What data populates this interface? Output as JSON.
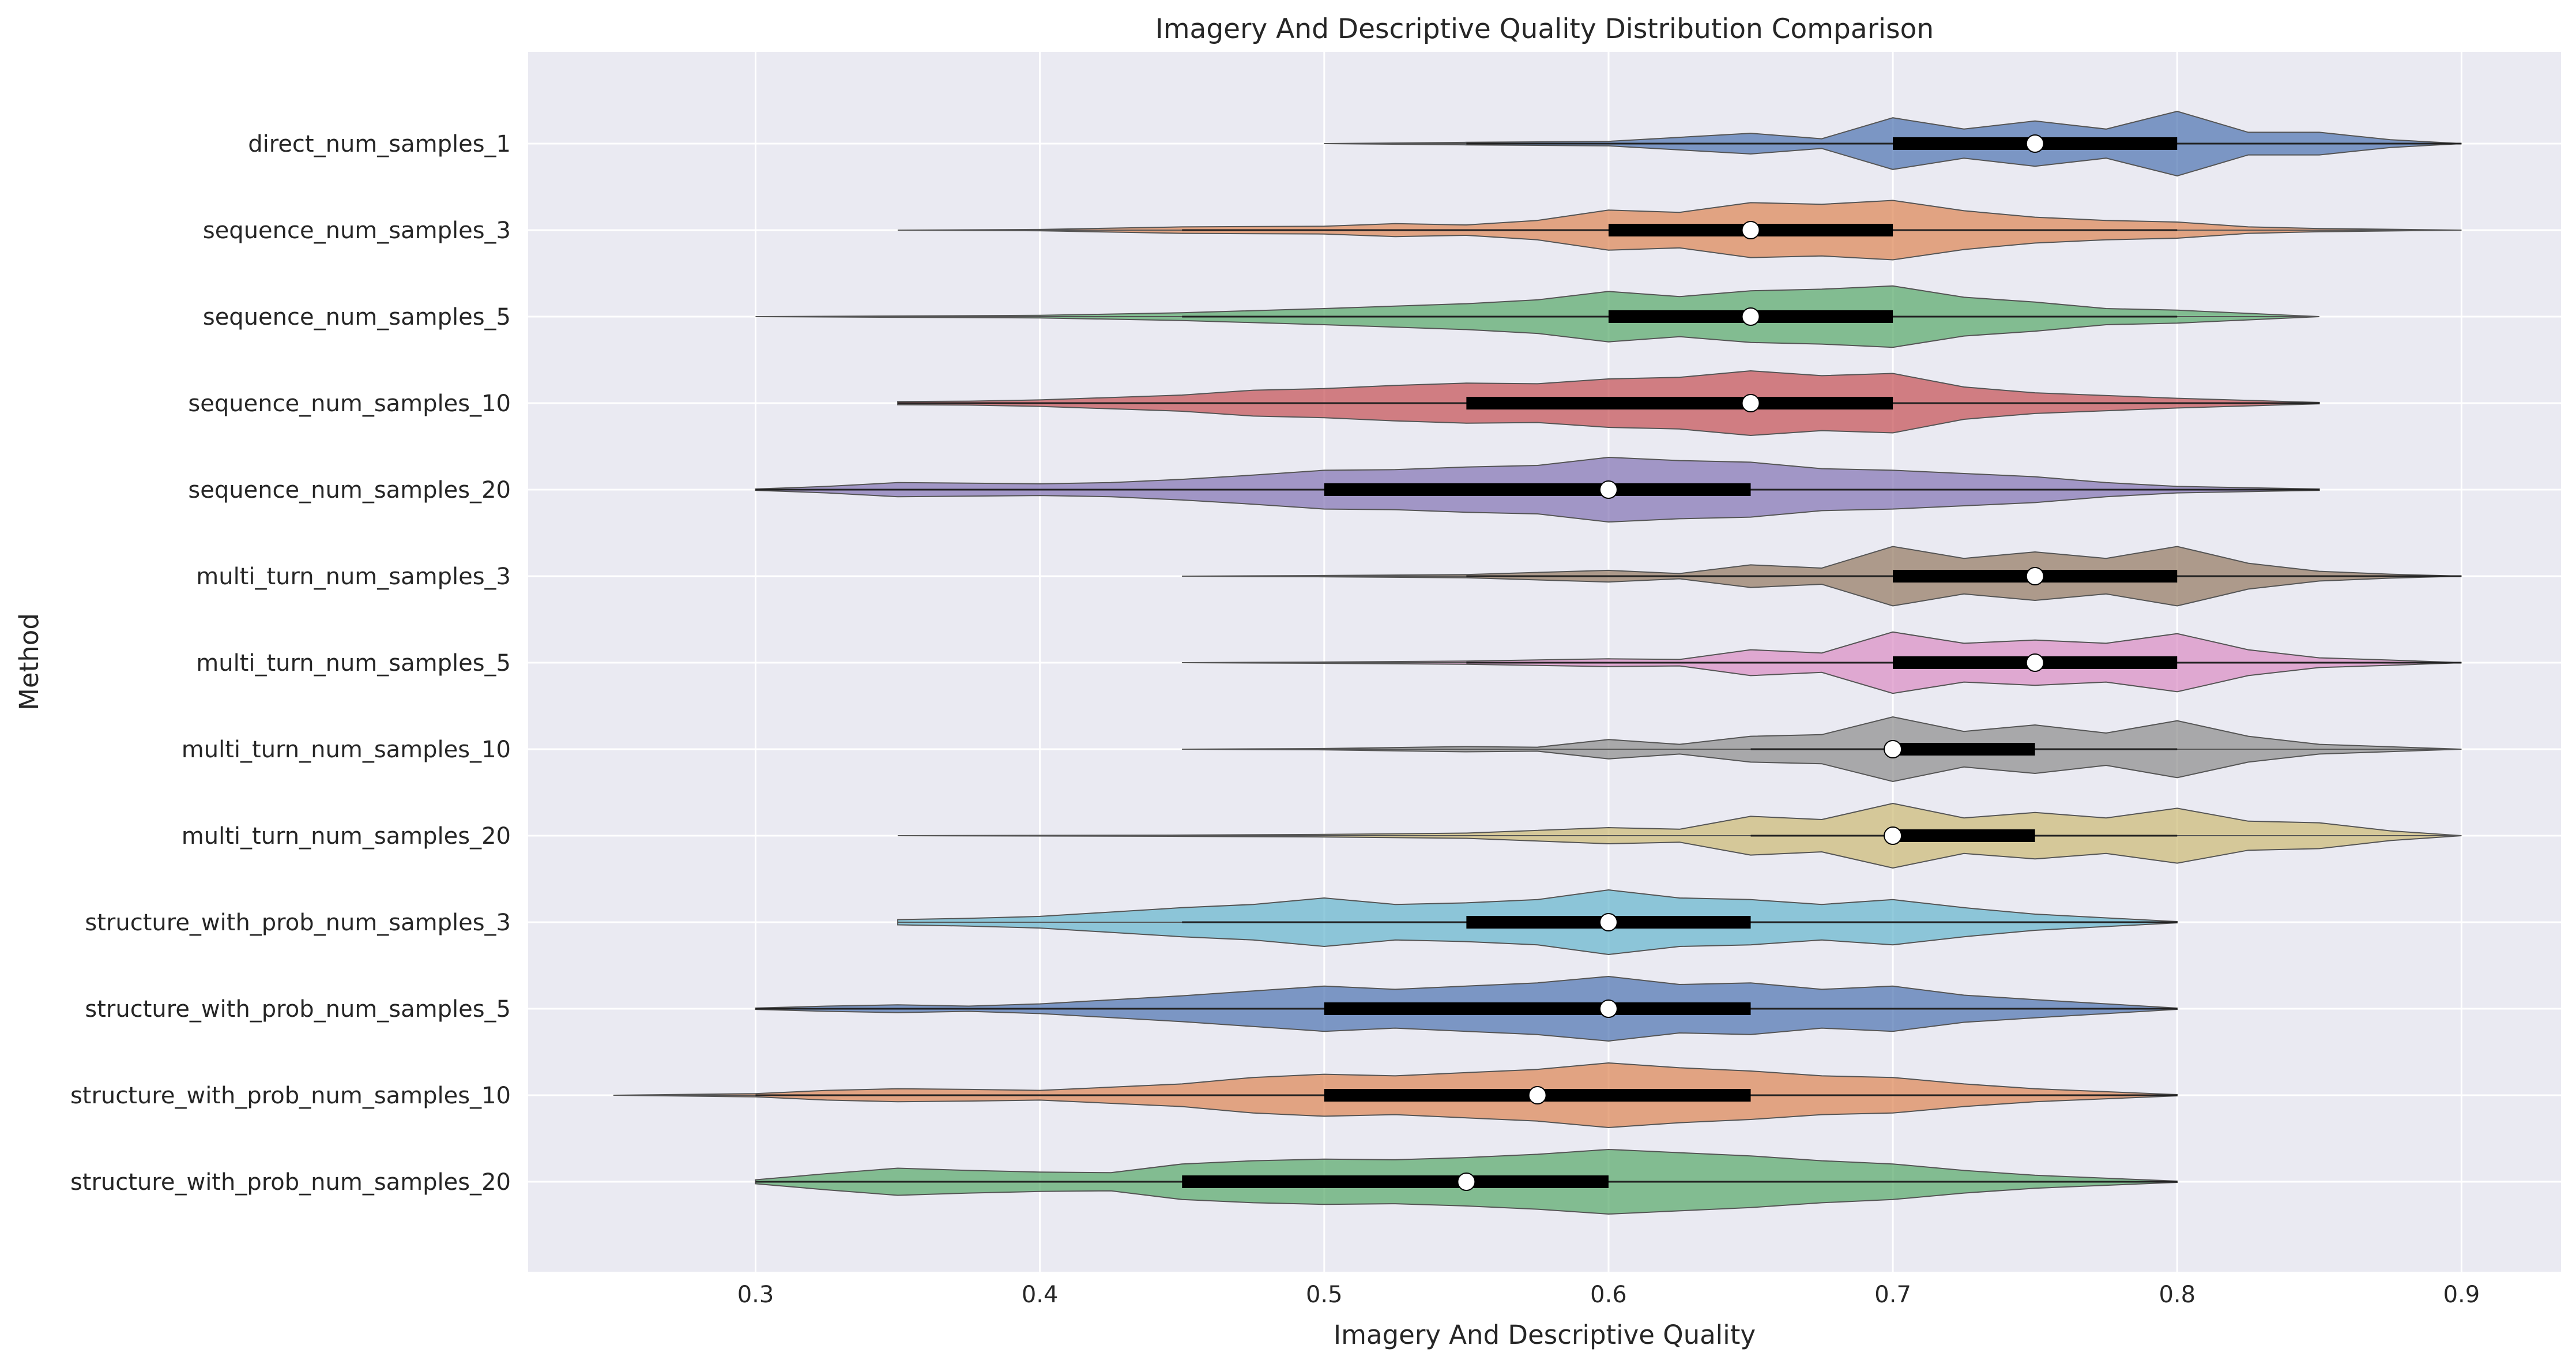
{
  "chart_data": {
    "type": "violin",
    "orientation": "horizontal",
    "title": "Imagery And Descriptive Quality Distribution Comparison",
    "xlabel": "Imagery And Descriptive Quality",
    "ylabel": "Method",
    "xlim": [
      0.22,
      0.935
    ],
    "xticks": [
      "0.3",
      "0.4",
      "0.5",
      "0.6",
      "0.7",
      "0.8",
      "0.9"
    ],
    "grid": true,
    "background": "#eaeaf2",
    "series": [
      {
        "name": "direct_num_samples_1",
        "color": "#4c72b0",
        "q1": 0.7,
        "median": 0.75,
        "q3": 0.8,
        "whisker_low": 0.55,
        "whisker_high": 0.9,
        "min": 0.5,
        "max": 0.9,
        "density": [
          [
            0.5,
            0.0
          ],
          [
            0.55,
            0.04
          ],
          [
            0.6,
            0.07
          ],
          [
            0.65,
            0.32
          ],
          [
            0.675,
            0.15
          ],
          [
            0.7,
            0.8
          ],
          [
            0.725,
            0.45
          ],
          [
            0.75,
            0.7
          ],
          [
            0.775,
            0.45
          ],
          [
            0.8,
            1.0
          ],
          [
            0.825,
            0.35
          ],
          [
            0.85,
            0.35
          ],
          [
            0.875,
            0.12
          ],
          [
            0.9,
            0.0
          ]
        ]
      },
      {
        "name": "sequence_num_samples_3",
        "color": "#dd8452",
        "q1": 0.6,
        "median": 0.65,
        "q3": 0.7,
        "whisker_low": 0.45,
        "whisker_high": 0.8,
        "min": 0.35,
        "max": 0.9,
        "density": [
          [
            0.35,
            0.0
          ],
          [
            0.4,
            0.02
          ],
          [
            0.45,
            0.1
          ],
          [
            0.5,
            0.12
          ],
          [
            0.525,
            0.2
          ],
          [
            0.55,
            0.16
          ],
          [
            0.575,
            0.3
          ],
          [
            0.6,
            0.62
          ],
          [
            0.625,
            0.55
          ],
          [
            0.65,
            0.85
          ],
          [
            0.675,
            0.8
          ],
          [
            0.7,
            0.92
          ],
          [
            0.725,
            0.6
          ],
          [
            0.75,
            0.4
          ],
          [
            0.775,
            0.3
          ],
          [
            0.8,
            0.25
          ],
          [
            0.825,
            0.1
          ],
          [
            0.85,
            0.05
          ],
          [
            0.9,
            0.0
          ]
        ]
      },
      {
        "name": "sequence_num_samples_5",
        "color": "#55a868",
        "q1": 0.6,
        "median": 0.65,
        "q3": 0.7,
        "whisker_low": 0.45,
        "whisker_high": 0.8,
        "min": 0.3,
        "max": 0.85,
        "density": [
          [
            0.3,
            0.0
          ],
          [
            0.35,
            0.02
          ],
          [
            0.4,
            0.04
          ],
          [
            0.45,
            0.12
          ],
          [
            0.5,
            0.25
          ],
          [
            0.55,
            0.4
          ],
          [
            0.575,
            0.52
          ],
          [
            0.6,
            0.78
          ],
          [
            0.625,
            0.62
          ],
          [
            0.65,
            0.8
          ],
          [
            0.675,
            0.85
          ],
          [
            0.7,
            0.95
          ],
          [
            0.725,
            0.6
          ],
          [
            0.75,
            0.45
          ],
          [
            0.775,
            0.25
          ],
          [
            0.8,
            0.2
          ],
          [
            0.825,
            0.1
          ],
          [
            0.85,
            0.0
          ]
        ]
      },
      {
        "name": "sequence_num_samples_10",
        "color": "#c44e52",
        "q1": 0.55,
        "median": 0.65,
        "q3": 0.7,
        "whisker_low": 0.35,
        "whisker_high": 0.85,
        "min": 0.35,
        "max": 0.85,
        "density": [
          [
            0.35,
            0.05
          ],
          [
            0.375,
            0.06
          ],
          [
            0.4,
            0.1
          ],
          [
            0.45,
            0.25
          ],
          [
            0.475,
            0.4
          ],
          [
            0.5,
            0.45
          ],
          [
            0.525,
            0.55
          ],
          [
            0.55,
            0.62
          ],
          [
            0.575,
            0.6
          ],
          [
            0.6,
            0.75
          ],
          [
            0.625,
            0.8
          ],
          [
            0.65,
            1.0
          ],
          [
            0.675,
            0.85
          ],
          [
            0.7,
            0.92
          ],
          [
            0.725,
            0.5
          ],
          [
            0.75,
            0.32
          ],
          [
            0.8,
            0.15
          ],
          [
            0.85,
            0.02
          ]
        ]
      },
      {
        "name": "sequence_num_samples_20",
        "color": "#8172b3",
        "q1": 0.5,
        "median": 0.6,
        "q3": 0.65,
        "whisker_low": 0.3,
        "whisker_high": 0.85,
        "min": 0.3,
        "max": 0.85,
        "density": [
          [
            0.3,
            0.02
          ],
          [
            0.325,
            0.1
          ],
          [
            0.35,
            0.22
          ],
          [
            0.375,
            0.2
          ],
          [
            0.4,
            0.18
          ],
          [
            0.425,
            0.22
          ],
          [
            0.45,
            0.32
          ],
          [
            0.475,
            0.45
          ],
          [
            0.5,
            0.6
          ],
          [
            0.525,
            0.62
          ],
          [
            0.55,
            0.7
          ],
          [
            0.575,
            0.75
          ],
          [
            0.6,
            1.0
          ],
          [
            0.625,
            0.9
          ],
          [
            0.65,
            0.85
          ],
          [
            0.675,
            0.65
          ],
          [
            0.7,
            0.6
          ],
          [
            0.725,
            0.5
          ],
          [
            0.75,
            0.4
          ],
          [
            0.775,
            0.22
          ],
          [
            0.8,
            0.1
          ],
          [
            0.85,
            0.02
          ]
        ]
      },
      {
        "name": "multi_turn_num_samples_3",
        "color": "#937860",
        "q1": 0.7,
        "median": 0.75,
        "q3": 0.8,
        "whisker_low": 0.55,
        "whisker_high": 0.9,
        "min": 0.45,
        "max": 0.9,
        "density": [
          [
            0.45,
            0.0
          ],
          [
            0.5,
            0.02
          ],
          [
            0.55,
            0.05
          ],
          [
            0.6,
            0.18
          ],
          [
            0.625,
            0.08
          ],
          [
            0.65,
            0.35
          ],
          [
            0.675,
            0.25
          ],
          [
            0.7,
            0.92
          ],
          [
            0.725,
            0.55
          ],
          [
            0.75,
            0.75
          ],
          [
            0.775,
            0.55
          ],
          [
            0.8,
            0.92
          ],
          [
            0.825,
            0.4
          ],
          [
            0.85,
            0.15
          ],
          [
            0.875,
            0.06
          ],
          [
            0.9,
            0.0
          ]
        ]
      },
      {
        "name": "multi_turn_num_samples_5",
        "color": "#da8bc3",
        "q1": 0.7,
        "median": 0.75,
        "q3": 0.8,
        "whisker_low": 0.55,
        "whisker_high": 0.9,
        "min": 0.45,
        "max": 0.9,
        "density": [
          [
            0.45,
            0.0
          ],
          [
            0.5,
            0.02
          ],
          [
            0.55,
            0.05
          ],
          [
            0.6,
            0.12
          ],
          [
            0.625,
            0.1
          ],
          [
            0.65,
            0.4
          ],
          [
            0.675,
            0.3
          ],
          [
            0.7,
            0.95
          ],
          [
            0.725,
            0.6
          ],
          [
            0.75,
            0.7
          ],
          [
            0.775,
            0.6
          ],
          [
            0.8,
            0.9
          ],
          [
            0.825,
            0.4
          ],
          [
            0.85,
            0.15
          ],
          [
            0.875,
            0.08
          ],
          [
            0.9,
            0.0
          ]
        ]
      },
      {
        "name": "multi_turn_num_samples_10",
        "color": "#8c8c8c",
        "q1": 0.7,
        "median": 0.7,
        "q3": 0.75,
        "whisker_low": 0.65,
        "whisker_high": 0.8,
        "min": 0.45,
        "max": 0.9,
        "density": [
          [
            0.45,
            0.0
          ],
          [
            0.5,
            0.02
          ],
          [
            0.55,
            0.08
          ],
          [
            0.575,
            0.06
          ],
          [
            0.6,
            0.3
          ],
          [
            0.625,
            0.15
          ],
          [
            0.65,
            0.4
          ],
          [
            0.675,
            0.45
          ],
          [
            0.7,
            1.0
          ],
          [
            0.725,
            0.55
          ],
          [
            0.75,
            0.75
          ],
          [
            0.775,
            0.5
          ],
          [
            0.8,
            0.88
          ],
          [
            0.825,
            0.4
          ],
          [
            0.85,
            0.15
          ],
          [
            0.9,
            0.0
          ]
        ]
      },
      {
        "name": "multi_turn_num_samples_20",
        "color": "#ccb974",
        "q1": 0.7,
        "median": 0.7,
        "q3": 0.75,
        "whisker_low": 0.65,
        "whisker_high": 0.8,
        "min": 0.35,
        "max": 0.9,
        "density": [
          [
            0.35,
            0.0
          ],
          [
            0.45,
            0.02
          ],
          [
            0.5,
            0.04
          ],
          [
            0.55,
            0.08
          ],
          [
            0.6,
            0.25
          ],
          [
            0.625,
            0.2
          ],
          [
            0.65,
            0.6
          ],
          [
            0.675,
            0.5
          ],
          [
            0.7,
            1.0
          ],
          [
            0.725,
            0.55
          ],
          [
            0.75,
            0.72
          ],
          [
            0.775,
            0.55
          ],
          [
            0.8,
            0.85
          ],
          [
            0.825,
            0.45
          ],
          [
            0.85,
            0.4
          ],
          [
            0.875,
            0.15
          ],
          [
            0.9,
            0.0
          ]
        ]
      },
      {
        "name": "structure_with_prob_num_samples_3",
        "color": "#64b5cd",
        "q1": 0.55,
        "median": 0.6,
        "q3": 0.65,
        "whisker_low": 0.45,
        "whisker_high": 0.8,
        "min": 0.35,
        "max": 0.8,
        "density": [
          [
            0.35,
            0.08
          ],
          [
            0.375,
            0.12
          ],
          [
            0.4,
            0.18
          ],
          [
            0.45,
            0.45
          ],
          [
            0.475,
            0.55
          ],
          [
            0.5,
            0.75
          ],
          [
            0.525,
            0.55
          ],
          [
            0.55,
            0.6
          ],
          [
            0.575,
            0.7
          ],
          [
            0.6,
            1.0
          ],
          [
            0.625,
            0.75
          ],
          [
            0.65,
            0.7
          ],
          [
            0.675,
            0.55
          ],
          [
            0.7,
            0.7
          ],
          [
            0.725,
            0.45
          ],
          [
            0.75,
            0.25
          ],
          [
            0.8,
            0.02
          ]
        ]
      },
      {
        "name": "structure_with_prob_num_samples_5",
        "color": "#4c72b0",
        "q1": 0.5,
        "median": 0.6,
        "q3": 0.65,
        "whisker_low": 0.3,
        "whisker_high": 0.8,
        "min": 0.3,
        "max": 0.8,
        "density": [
          [
            0.3,
            0.02
          ],
          [
            0.325,
            0.08
          ],
          [
            0.35,
            0.12
          ],
          [
            0.375,
            0.08
          ],
          [
            0.4,
            0.15
          ],
          [
            0.45,
            0.4
          ],
          [
            0.475,
            0.55
          ],
          [
            0.5,
            0.7
          ],
          [
            0.525,
            0.6
          ],
          [
            0.55,
            0.7
          ],
          [
            0.575,
            0.8
          ],
          [
            0.6,
            1.0
          ],
          [
            0.625,
            0.75
          ],
          [
            0.65,
            0.8
          ],
          [
            0.675,
            0.6
          ],
          [
            0.7,
            0.7
          ],
          [
            0.725,
            0.42
          ],
          [
            0.75,
            0.28
          ],
          [
            0.8,
            0.02
          ]
        ]
      },
      {
        "name": "structure_with_prob_num_samples_10",
        "color": "#dd8452",
        "q1": 0.5,
        "median": 0.575,
        "q3": 0.65,
        "whisker_low": 0.3,
        "whisker_high": 0.8,
        "min": 0.25,
        "max": 0.8,
        "density": [
          [
            0.25,
            0.0
          ],
          [
            0.3,
            0.05
          ],
          [
            0.325,
            0.15
          ],
          [
            0.35,
            0.2
          ],
          [
            0.375,
            0.18
          ],
          [
            0.4,
            0.15
          ],
          [
            0.45,
            0.35
          ],
          [
            0.475,
            0.55
          ],
          [
            0.5,
            0.65
          ],
          [
            0.525,
            0.6
          ],
          [
            0.55,
            0.7
          ],
          [
            0.575,
            0.8
          ],
          [
            0.6,
            1.0
          ],
          [
            0.625,
            0.85
          ],
          [
            0.65,
            0.75
          ],
          [
            0.675,
            0.6
          ],
          [
            0.7,
            0.55
          ],
          [
            0.725,
            0.35
          ],
          [
            0.75,
            0.2
          ],
          [
            0.8,
            0.02
          ]
        ]
      },
      {
        "name": "structure_with_prob_num_samples_20",
        "color": "#55a868",
        "q1": 0.45,
        "median": 0.55,
        "q3": 0.6,
        "whisker_low": 0.3,
        "whisker_high": 0.8,
        "min": 0.3,
        "max": 0.8,
        "density": [
          [
            0.3,
            0.06
          ],
          [
            0.325,
            0.25
          ],
          [
            0.35,
            0.42
          ],
          [
            0.375,
            0.35
          ],
          [
            0.4,
            0.3
          ],
          [
            0.425,
            0.28
          ],
          [
            0.45,
            0.55
          ],
          [
            0.475,
            0.65
          ],
          [
            0.5,
            0.7
          ],
          [
            0.525,
            0.68
          ],
          [
            0.55,
            0.75
          ],
          [
            0.575,
            0.85
          ],
          [
            0.6,
            1.0
          ],
          [
            0.625,
            0.9
          ],
          [
            0.65,
            0.8
          ],
          [
            0.675,
            0.65
          ],
          [
            0.7,
            0.55
          ],
          [
            0.725,
            0.35
          ],
          [
            0.75,
            0.2
          ],
          [
            0.8,
            0.02
          ]
        ]
      }
    ]
  }
}
